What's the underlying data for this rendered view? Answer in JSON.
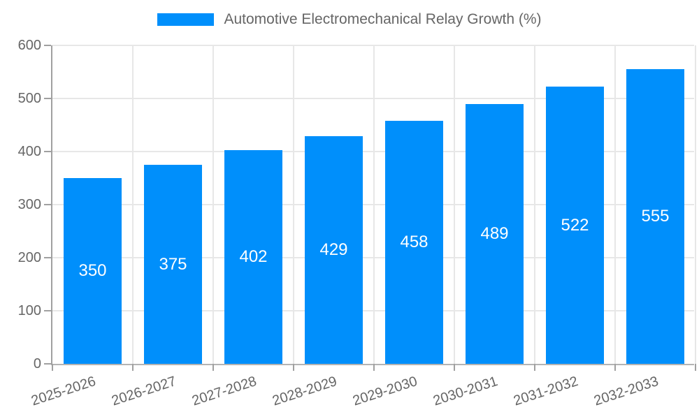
{
  "chart_data": {
    "type": "bar",
    "title": "Automotive Electromechanical Relay Growth (%)",
    "legend": {
      "position": "top",
      "entries": [
        "Automotive Electromechanical Relay Growth (%)"
      ]
    },
    "categories": [
      "2025-2026",
      "2026-2027",
      "2027-2028",
      "2028-2029",
      "2029-2030",
      "2030-2031",
      "2031-2032",
      "2032-2033"
    ],
    "values": [
      350,
      375,
      402,
      429,
      458,
      489,
      522,
      555
    ],
    "value_labels": [
      "350",
      "375",
      "402",
      "429",
      "458",
      "489",
      "522",
      "555"
    ],
    "xlabel": "",
    "ylabel": "",
    "ylim": [
      0,
      600
    ],
    "y_ticks": [
      0,
      100,
      200,
      300,
      400,
      500,
      600
    ],
    "grid": true,
    "x_label_rotation_deg": -18,
    "colors": {
      "bar": "#008FFB",
      "grid": "#e7e7e7",
      "axis": "#a0a0a0",
      "x_axis_line": "#b4b4b4",
      "label": "#666666",
      "value_label": "#ffffff",
      "background": "#ffffff"
    }
  }
}
